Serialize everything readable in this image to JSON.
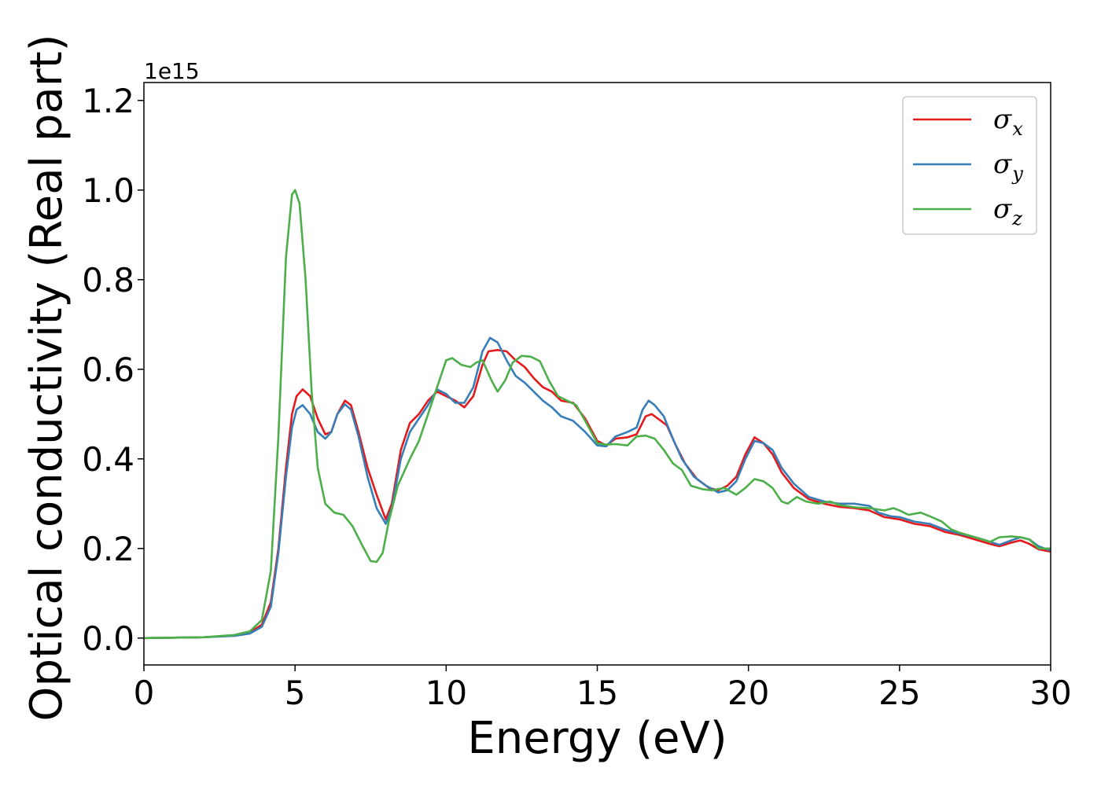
{
  "chart_data": {
    "type": "line",
    "title": "",
    "xlabel": "Energy (eV)",
    "ylabel": "Optical conductivity (Real part)",
    "y_offset_label": "1e15",
    "xlim": [
      0,
      30
    ],
    "ylim": [
      -0.06,
      1.24
    ],
    "x_ticks": [
      0,
      5,
      10,
      15,
      20,
      25,
      30
    ],
    "x_tick_labels": [
      "0",
      "5",
      "10",
      "15",
      "20",
      "25",
      "30"
    ],
    "y_ticks": [
      0.0,
      0.2,
      0.4,
      0.6,
      0.8,
      1.0,
      1.2
    ],
    "y_tick_labels": [
      "0.0",
      "0.2",
      "0.4",
      "0.6",
      "0.8",
      "1.0",
      "1.2"
    ],
    "grid": false,
    "legend_position": "top-right",
    "series": [
      {
        "name": "σx",
        "name_base": "σ",
        "name_sub": "x",
        "color": "#e41a1c",
        "points": [
          [
            0,
            0
          ],
          [
            2,
            0.002
          ],
          [
            3,
            0.006
          ],
          [
            3.5,
            0.012
          ],
          [
            3.9,
            0.03
          ],
          [
            4.2,
            0.08
          ],
          [
            4.45,
            0.2
          ],
          [
            4.7,
            0.38
          ],
          [
            4.9,
            0.5
          ],
          [
            5.05,
            0.54
          ],
          [
            5.25,
            0.555
          ],
          [
            5.5,
            0.54
          ],
          [
            5.75,
            0.49
          ],
          [
            6.0,
            0.455
          ],
          [
            6.2,
            0.46
          ],
          [
            6.4,
            0.5
          ],
          [
            6.65,
            0.53
          ],
          [
            6.85,
            0.52
          ],
          [
            7.1,
            0.46
          ],
          [
            7.4,
            0.38
          ],
          [
            7.7,
            0.32
          ],
          [
            8.0,
            0.265
          ],
          [
            8.2,
            0.3
          ],
          [
            8.5,
            0.42
          ],
          [
            8.8,
            0.48
          ],
          [
            9.1,
            0.5
          ],
          [
            9.4,
            0.53
          ],
          [
            9.7,
            0.55
          ],
          [
            10.0,
            0.54
          ],
          [
            10.3,
            0.53
          ],
          [
            10.6,
            0.515
          ],
          [
            10.9,
            0.54
          ],
          [
            11.2,
            0.61
          ],
          [
            11.4,
            0.64
          ],
          [
            11.7,
            0.643
          ],
          [
            12.0,
            0.64
          ],
          [
            12.3,
            0.62
          ],
          [
            12.6,
            0.605
          ],
          [
            12.9,
            0.58
          ],
          [
            13.2,
            0.56
          ],
          [
            13.5,
            0.55
          ],
          [
            13.8,
            0.53
          ],
          [
            14.2,
            0.525
          ],
          [
            14.6,
            0.49
          ],
          [
            15.0,
            0.44
          ],
          [
            15.3,
            0.43
          ],
          [
            15.6,
            0.445
          ],
          [
            16.0,
            0.448
          ],
          [
            16.3,
            0.455
          ],
          [
            16.6,
            0.495
          ],
          [
            16.8,
            0.5
          ],
          [
            17.0,
            0.49
          ],
          [
            17.3,
            0.475
          ],
          [
            17.6,
            0.43
          ],
          [
            17.9,
            0.39
          ],
          [
            18.3,
            0.355
          ],
          [
            18.7,
            0.335
          ],
          [
            19.0,
            0.33
          ],
          [
            19.3,
            0.34
          ],
          [
            19.6,
            0.36
          ],
          [
            19.9,
            0.41
          ],
          [
            20.2,
            0.448
          ],
          [
            20.5,
            0.435
          ],
          [
            20.8,
            0.41
          ],
          [
            21.1,
            0.37
          ],
          [
            21.5,
            0.335
          ],
          [
            22.0,
            0.31
          ],
          [
            22.5,
            0.3
          ],
          [
            23.0,
            0.293
          ],
          [
            23.5,
            0.29
          ],
          [
            24.0,
            0.285
          ],
          [
            24.5,
            0.27
          ],
          [
            25.0,
            0.265
          ],
          [
            25.5,
            0.255
          ],
          [
            26.0,
            0.25
          ],
          [
            26.5,
            0.237
          ],
          [
            27.0,
            0.23
          ],
          [
            27.5,
            0.22
          ],
          [
            28.0,
            0.21
          ],
          [
            28.3,
            0.205
          ],
          [
            28.7,
            0.213
          ],
          [
            29.0,
            0.218
          ],
          [
            29.3,
            0.21
          ],
          [
            29.6,
            0.198
          ],
          [
            30.0,
            0.193
          ]
        ]
      },
      {
        "name": "σy",
        "name_base": "σ",
        "name_sub": "y",
        "color": "#377eb8",
        "points": [
          [
            0,
            0
          ],
          [
            2,
            0.002
          ],
          [
            3,
            0.005
          ],
          [
            3.5,
            0.01
          ],
          [
            3.9,
            0.025
          ],
          [
            4.2,
            0.07
          ],
          [
            4.45,
            0.19
          ],
          [
            4.7,
            0.36
          ],
          [
            4.9,
            0.47
          ],
          [
            5.05,
            0.51
          ],
          [
            5.25,
            0.52
          ],
          [
            5.5,
            0.5
          ],
          [
            5.75,
            0.46
          ],
          [
            6.0,
            0.445
          ],
          [
            6.2,
            0.46
          ],
          [
            6.4,
            0.5
          ],
          [
            6.65,
            0.522
          ],
          [
            6.85,
            0.51
          ],
          [
            7.1,
            0.45
          ],
          [
            7.4,
            0.36
          ],
          [
            7.7,
            0.29
          ],
          [
            8.0,
            0.255
          ],
          [
            8.2,
            0.29
          ],
          [
            8.5,
            0.4
          ],
          [
            8.8,
            0.46
          ],
          [
            9.1,
            0.49
          ],
          [
            9.4,
            0.52
          ],
          [
            9.7,
            0.555
          ],
          [
            10.0,
            0.545
          ],
          [
            10.3,
            0.525
          ],
          [
            10.6,
            0.525
          ],
          [
            10.9,
            0.56
          ],
          [
            11.2,
            0.64
          ],
          [
            11.45,
            0.67
          ],
          [
            11.7,
            0.66
          ],
          [
            12.0,
            0.62
          ],
          [
            12.3,
            0.585
          ],
          [
            12.6,
            0.57
          ],
          [
            12.9,
            0.55
          ],
          [
            13.2,
            0.53
          ],
          [
            13.5,
            0.515
          ],
          [
            13.8,
            0.495
          ],
          [
            14.2,
            0.485
          ],
          [
            14.6,
            0.46
          ],
          [
            15.0,
            0.43
          ],
          [
            15.3,
            0.428
          ],
          [
            15.6,
            0.45
          ],
          [
            16.0,
            0.46
          ],
          [
            16.3,
            0.47
          ],
          [
            16.5,
            0.51
          ],
          [
            16.7,
            0.53
          ],
          [
            16.9,
            0.52
          ],
          [
            17.2,
            0.495
          ],
          [
            17.5,
            0.445
          ],
          [
            17.8,
            0.4
          ],
          [
            18.2,
            0.36
          ],
          [
            18.6,
            0.34
          ],
          [
            19.0,
            0.325
          ],
          [
            19.3,
            0.33
          ],
          [
            19.6,
            0.35
          ],
          [
            19.9,
            0.4
          ],
          [
            20.2,
            0.44
          ],
          [
            20.5,
            0.435
          ],
          [
            20.8,
            0.42
          ],
          [
            21.1,
            0.38
          ],
          [
            21.5,
            0.345
          ],
          [
            22.0,
            0.315
          ],
          [
            22.5,
            0.305
          ],
          [
            23.0,
            0.3
          ],
          [
            23.5,
            0.3
          ],
          [
            24.0,
            0.295
          ],
          [
            24.3,
            0.28
          ],
          [
            24.7,
            0.272
          ],
          [
            25.0,
            0.27
          ],
          [
            25.5,
            0.26
          ],
          [
            26.0,
            0.255
          ],
          [
            26.5,
            0.242
          ],
          [
            27.0,
            0.233
          ],
          [
            27.5,
            0.225
          ],
          [
            28.0,
            0.215
          ],
          [
            28.3,
            0.208
          ],
          [
            28.7,
            0.218
          ],
          [
            29.0,
            0.225
          ],
          [
            29.3,
            0.22
          ],
          [
            29.6,
            0.205
          ],
          [
            30.0,
            0.195
          ]
        ]
      },
      {
        "name": "σz",
        "name_base": "σ",
        "name_sub": "z",
        "color": "#4daf4a",
        "points": [
          [
            0,
            0
          ],
          [
            2,
            0.002
          ],
          [
            3,
            0.007
          ],
          [
            3.5,
            0.015
          ],
          [
            3.9,
            0.04
          ],
          [
            4.2,
            0.15
          ],
          [
            4.45,
            0.45
          ],
          [
            4.7,
            0.85
          ],
          [
            4.9,
            0.99
          ],
          [
            5.0,
            1.0
          ],
          [
            5.15,
            0.97
          ],
          [
            5.35,
            0.8
          ],
          [
            5.55,
            0.55
          ],
          [
            5.75,
            0.38
          ],
          [
            6.0,
            0.3
          ],
          [
            6.3,
            0.28
          ],
          [
            6.6,
            0.275
          ],
          [
            6.9,
            0.25
          ],
          [
            7.2,
            0.21
          ],
          [
            7.5,
            0.172
          ],
          [
            7.7,
            0.17
          ],
          [
            7.9,
            0.19
          ],
          [
            8.1,
            0.26
          ],
          [
            8.4,
            0.34
          ],
          [
            8.8,
            0.4
          ],
          [
            9.1,
            0.44
          ],
          [
            9.4,
            0.5
          ],
          [
            9.7,
            0.56
          ],
          [
            10.0,
            0.62
          ],
          [
            10.2,
            0.625
          ],
          [
            10.5,
            0.61
          ],
          [
            10.8,
            0.605
          ],
          [
            11.0,
            0.615
          ],
          [
            11.2,
            0.62
          ],
          [
            11.5,
            0.575
          ],
          [
            11.7,
            0.55
          ],
          [
            11.95,
            0.575
          ],
          [
            12.2,
            0.615
          ],
          [
            12.5,
            0.63
          ],
          [
            12.8,
            0.628
          ],
          [
            13.1,
            0.618
          ],
          [
            13.4,
            0.575
          ],
          [
            13.7,
            0.54
          ],
          [
            14.0,
            0.53
          ],
          [
            14.3,
            0.52
          ],
          [
            14.6,
            0.485
          ],
          [
            15.0,
            0.435
          ],
          [
            15.3,
            0.432
          ],
          [
            15.6,
            0.433
          ],
          [
            16.0,
            0.43
          ],
          [
            16.3,
            0.45
          ],
          [
            16.6,
            0.452
          ],
          [
            16.9,
            0.445
          ],
          [
            17.2,
            0.42
          ],
          [
            17.5,
            0.39
          ],
          [
            17.8,
            0.375
          ],
          [
            18.1,
            0.34
          ],
          [
            18.5,
            0.332
          ],
          [
            18.8,
            0.33
          ],
          [
            19.2,
            0.335
          ],
          [
            19.6,
            0.32
          ],
          [
            19.9,
            0.335
          ],
          [
            20.2,
            0.355
          ],
          [
            20.5,
            0.35
          ],
          [
            20.8,
            0.335
          ],
          [
            21.1,
            0.305
          ],
          [
            21.3,
            0.3
          ],
          [
            21.6,
            0.315
          ],
          [
            21.9,
            0.305
          ],
          [
            22.3,
            0.3
          ],
          [
            22.7,
            0.305
          ],
          [
            23.0,
            0.297
          ],
          [
            23.5,
            0.292
          ],
          [
            24.0,
            0.29
          ],
          [
            24.5,
            0.285
          ],
          [
            24.8,
            0.29
          ],
          [
            25.0,
            0.285
          ],
          [
            25.3,
            0.275
          ],
          [
            25.7,
            0.28
          ],
          [
            26.0,
            0.272
          ],
          [
            26.4,
            0.26
          ],
          [
            26.7,
            0.243
          ],
          [
            27.0,
            0.235
          ],
          [
            27.5,
            0.225
          ],
          [
            28.0,
            0.215
          ],
          [
            28.3,
            0.225
          ],
          [
            28.7,
            0.227
          ],
          [
            29.0,
            0.225
          ],
          [
            29.3,
            0.22
          ],
          [
            29.6,
            0.2
          ],
          [
            30.0,
            0.2
          ]
        ]
      }
    ]
  }
}
